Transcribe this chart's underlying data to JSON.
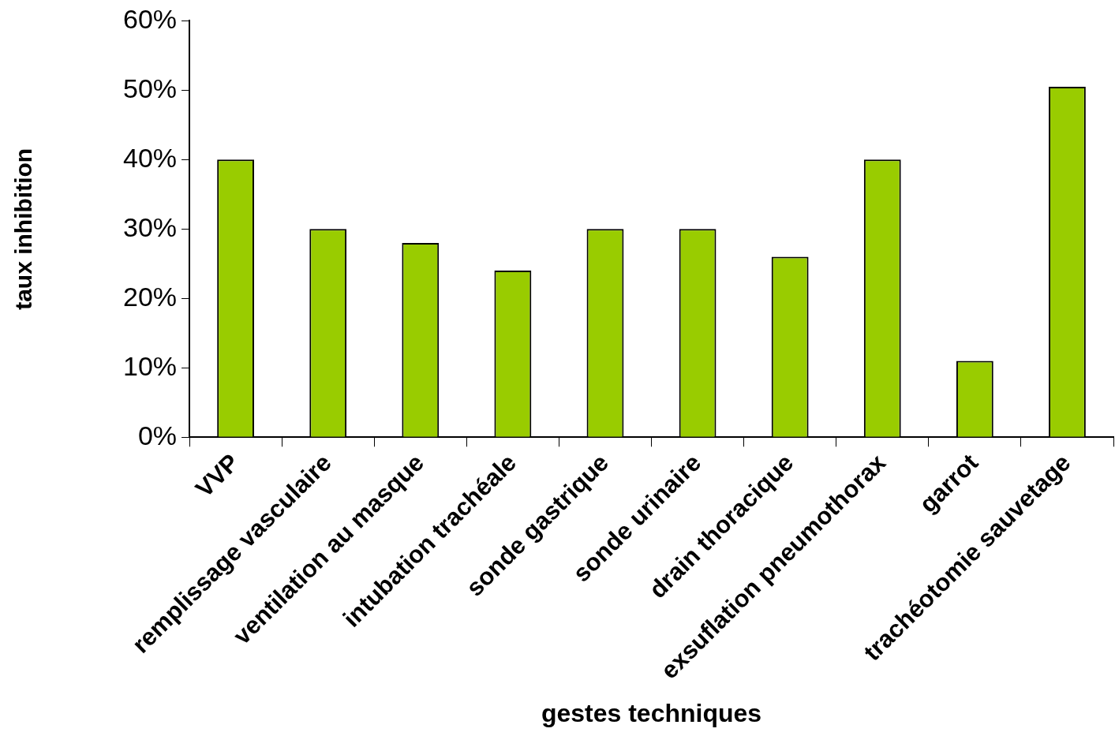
{
  "chart_data": {
    "type": "bar",
    "xlabel": "gestes techniques",
    "ylabel": "taux inhibition",
    "categories": [
      "VVP",
      "remplissage vasculaire",
      "ventilation au masque",
      "intubation trachéale",
      "sonde gastrique",
      "sonde urinaire",
      "drain thoracique",
      "exsuflation pneumothorax",
      "garrot",
      "trachéotomie sauvetage"
    ],
    "values": [
      40,
      30,
      28,
      24,
      30,
      30,
      26,
      40,
      11,
      50.5
    ],
    "color": "#99cc00",
    "ylim": [
      0,
      60
    ],
    "yticks": [
      {
        "value": 0,
        "label": "0%"
      },
      {
        "value": 10,
        "label": "10%"
      },
      {
        "value": 20,
        "label": "20%"
      },
      {
        "value": 30,
        "label": "30%"
      },
      {
        "value": 40,
        "label": "40%"
      },
      {
        "value": 50,
        "label": "50%"
      },
      {
        "value": 60,
        "label": "60%"
      }
    ],
    "grid": false,
    "legend": false
  }
}
